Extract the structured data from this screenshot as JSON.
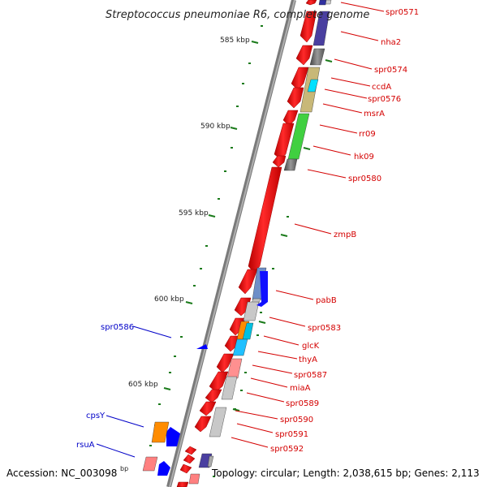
{
  "title": "Streptococcus pneumoniae R6, complete genome",
  "accession_text": "Accession: NC_003098",
  "topology_text": "Topology: circular; Length: 2,038,615 bp; Genes: 2,113",
  "bp_unit": "bp",
  "ticks": [
    "585 kbp",
    "590 kbp",
    "595 kbp",
    "600 kbp",
    "605 kbp"
  ],
  "genes_right": [
    "spr0571",
    "nha2",
    "spr0574",
    "ccdA",
    "spr0576",
    "msrA",
    "rr09",
    "hk09",
    "spr0580",
    "zmpB",
    "pabB",
    "spr0583",
    "glcK",
    "thyA",
    "spr0587",
    "miaA",
    "spr0589",
    "spr0590",
    "spr0591",
    "spr0592"
  ],
  "genes_left": [
    "spr0586",
    "cpsY",
    "rsuA"
  ],
  "colors": {
    "cds": "#ff0000",
    "backbone": "#888888",
    "tick": "#1a7a1a",
    "label_forward": "#d40000",
    "label_reverse": "#0000c8",
    "reverse_gene": "#0000ff"
  }
}
